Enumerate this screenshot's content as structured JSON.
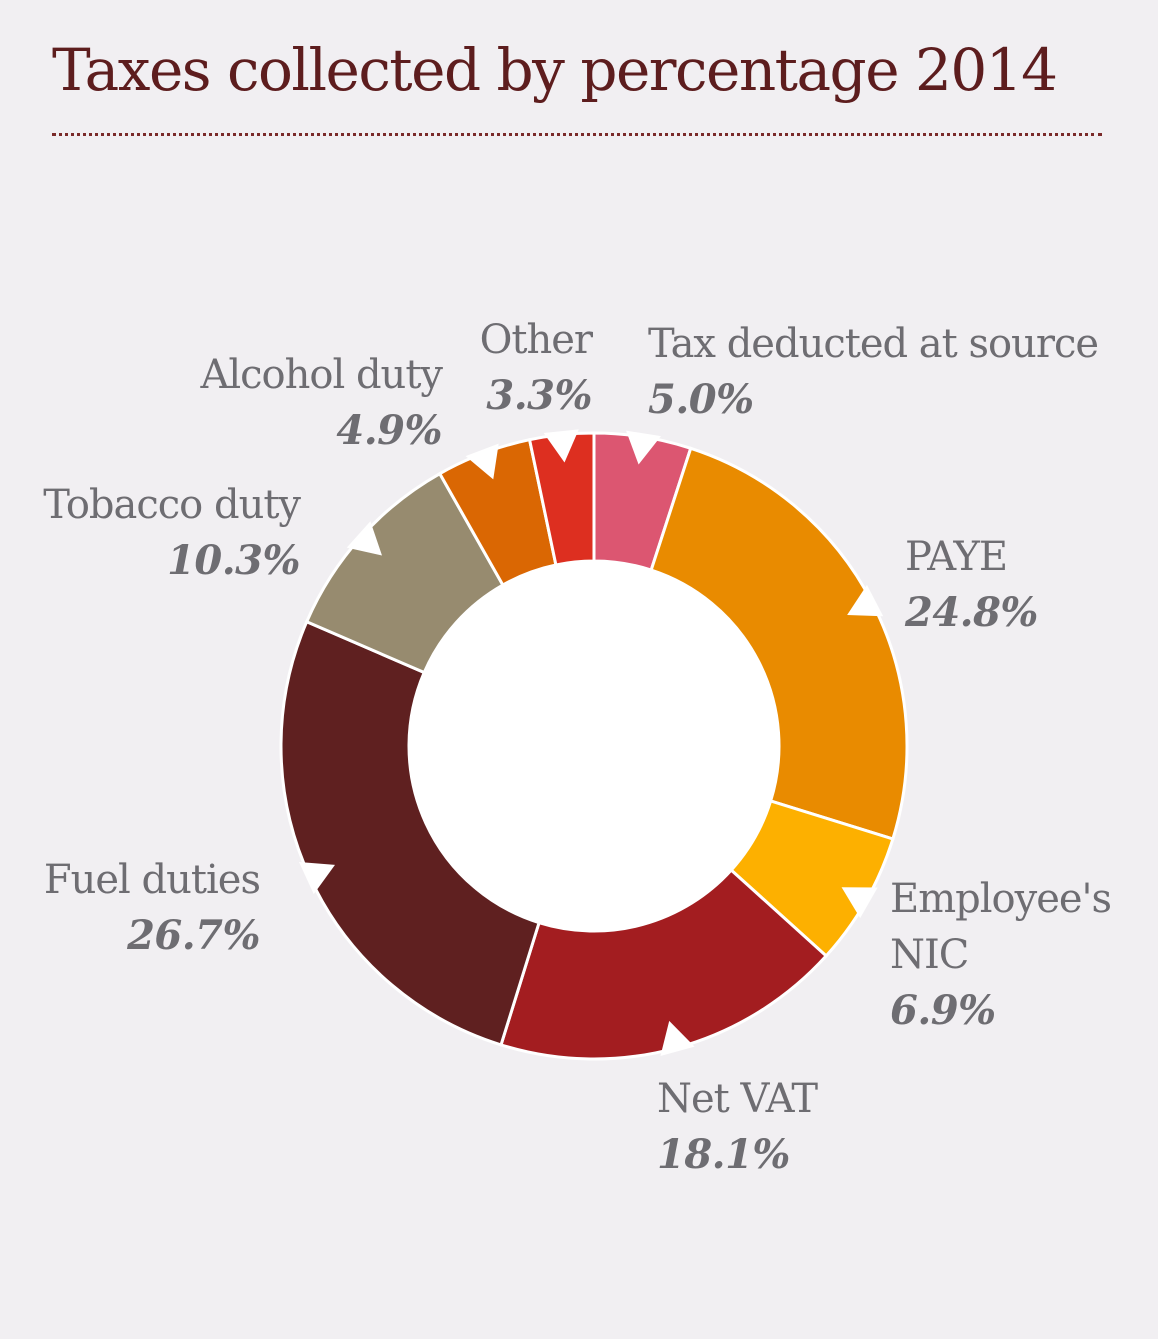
{
  "chart_data": {
    "type": "pie",
    "title": "Taxes collected by percentage 2014",
    "unit": "%",
    "slices": [
      {
        "label": "Tax deducted at source",
        "value": 5.0,
        "display": "5.0%",
        "color": "#dc5671"
      },
      {
        "label": "PAYE",
        "value": 24.8,
        "display": "24.8%",
        "color": "#e98b00"
      },
      {
        "label": "Employee's NIC",
        "value": 6.9,
        "display": "6.9%",
        "color": "#fdb000"
      },
      {
        "label": "Net VAT",
        "value": 18.1,
        "display": "18.1%",
        "color": "#a31d20"
      },
      {
        "label": "Fuel duties",
        "value": 26.7,
        "display": "26.7%",
        "color": "#5f2020"
      },
      {
        "label": "Tobacco duty",
        "value": 10.3,
        "display": "10.3%",
        "color": "#978b6f"
      },
      {
        "label": "Alcohol duty",
        "value": 4.9,
        "display": "4.9%",
        "color": "#da6703"
      },
      {
        "label": "Other",
        "value": 3.3,
        "display": "3.3%",
        "color": "#dd2f20"
      }
    ]
  }
}
